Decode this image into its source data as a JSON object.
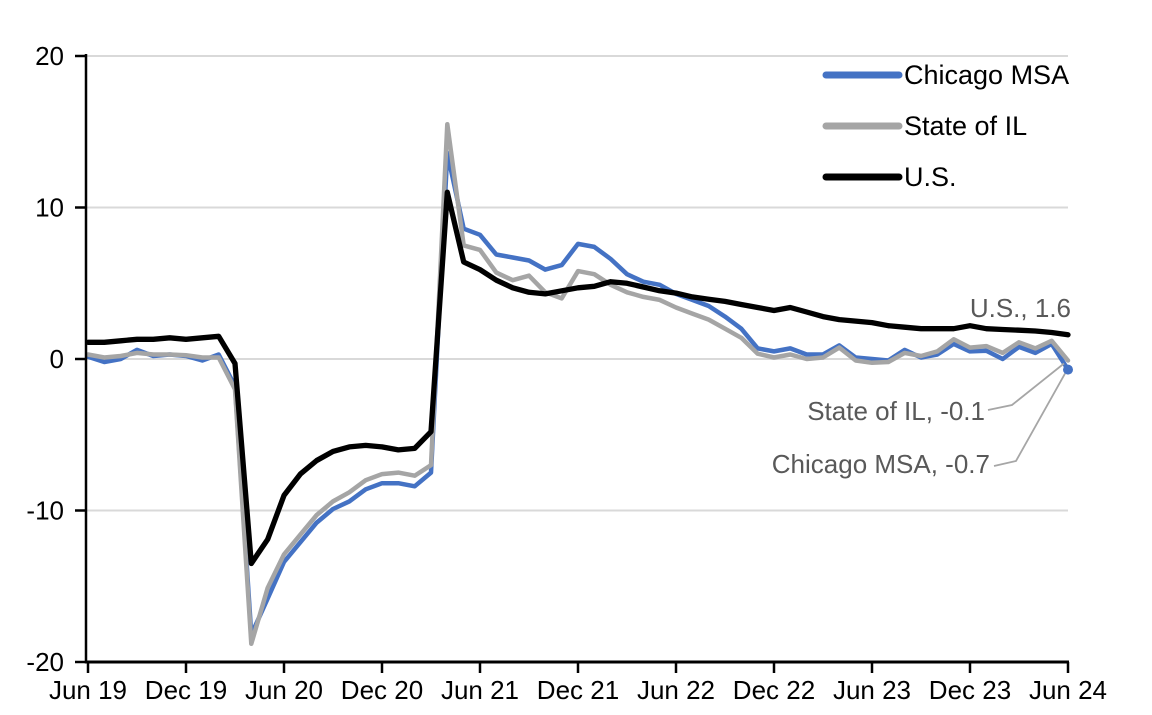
{
  "colors": {
    "chicago_msa": "#4472C4",
    "state_of_il": "#A5A5A5",
    "us": "#000000",
    "gridline": "#D9D9D9",
    "axis": "#000000",
    "annotation_text": "#595959",
    "leader": "#A6A6A6",
    "background": "#FFFFFF"
  },
  "annotations": {
    "us": "U.S., 1.6",
    "state_il": "State of IL, -0.1",
    "chicago": "Chicago MSA, -0.7"
  },
  "chart_data": {
    "type": "line",
    "frequency": "monthly",
    "x_range": [
      "Jun 2019",
      "Jun 2024"
    ],
    "x_tick_labels": [
      "Jun 19",
      "Dec 19",
      "Jun 20",
      "Dec 20",
      "Jun 21",
      "Dec 21",
      "Jun 22",
      "Dec 22",
      "Jun 23",
      "Dec 23",
      "Jun 24"
    ],
    "y_ticks": [
      20,
      10,
      0,
      -10,
      -20
    ],
    "ylim": [
      -20,
      20
    ],
    "grid": true,
    "legend_position": "top-right",
    "series": [
      {
        "name": "Chicago MSA",
        "color": "#4472C4",
        "end_label_value": -0.7,
        "values": [
          0.15,
          -0.2,
          0.0,
          0.6,
          0.2,
          0.3,
          0.2,
          -0.1,
          0.3,
          -1.8,
          -18.2,
          -15.8,
          -13.4,
          -12.1,
          -10.8,
          -9.9,
          -9.4,
          -8.6,
          -8.2,
          -8.2,
          -8.4,
          -7.5,
          13.6,
          8.6,
          8.2,
          6.9,
          6.7,
          6.5,
          5.9,
          6.2,
          7.6,
          7.4,
          6.6,
          5.6,
          5.1,
          4.9,
          4.3,
          3.9,
          3.5,
          2.8,
          2.0,
          0.7,
          0.5,
          0.7,
          0.3,
          0.3,
          0.9,
          0.1,
          0.0,
          -0.1,
          0.6,
          0.1,
          0.3,
          1.0,
          0.5,
          0.55,
          0.0,
          0.8,
          0.4,
          1.0,
          -0.7
        ]
      },
      {
        "name": "State of IL",
        "color": "#A5A5A5",
        "end_label_value": -0.1,
        "values": [
          0.3,
          0.1,
          0.2,
          0.4,
          0.3,
          0.3,
          0.25,
          0.1,
          0.1,
          -2.0,
          -18.8,
          -15.1,
          -12.9,
          -11.6,
          -10.3,
          -9.4,
          -8.8,
          -8.0,
          -7.6,
          -7.5,
          -7.7,
          -7.0,
          15.5,
          7.5,
          7.2,
          5.7,
          5.2,
          5.5,
          4.4,
          4.0,
          5.8,
          5.6,
          4.9,
          4.4,
          4.1,
          3.9,
          3.4,
          3.0,
          2.6,
          2.0,
          1.4,
          0.35,
          0.1,
          0.3,
          0.0,
          0.1,
          0.75,
          -0.1,
          -0.25,
          -0.2,
          0.4,
          0.2,
          0.5,
          1.3,
          0.75,
          0.85,
          0.4,
          1.1,
          0.7,
          1.2,
          -0.1
        ]
      },
      {
        "name": "U.S.",
        "color": "#000000",
        "end_label_value": 1.6,
        "values": [
          1.1,
          1.1,
          1.2,
          1.3,
          1.3,
          1.4,
          1.3,
          1.4,
          1.5,
          -0.3,
          -13.5,
          -11.9,
          -9.0,
          -7.6,
          -6.7,
          -6.1,
          -5.8,
          -5.7,
          -5.8,
          -6.0,
          -5.9,
          -4.8,
          11.0,
          6.4,
          5.9,
          5.2,
          4.7,
          4.4,
          4.3,
          4.5,
          4.7,
          4.8,
          5.1,
          5.0,
          4.75,
          4.5,
          4.35,
          4.1,
          3.95,
          3.8,
          3.6,
          3.4,
          3.2,
          3.4,
          3.1,
          2.8,
          2.6,
          2.5,
          2.4,
          2.2,
          2.1,
          2.0,
          2.0,
          2.0,
          2.2,
          2.0,
          1.95,
          1.9,
          1.85,
          1.75,
          1.6
        ]
      }
    ]
  }
}
